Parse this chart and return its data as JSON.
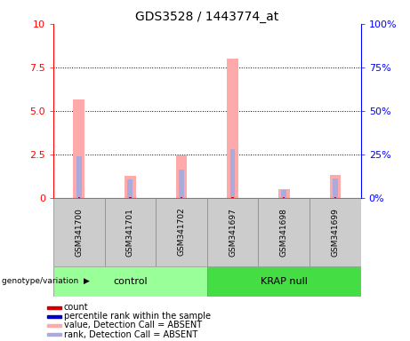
{
  "title": "GDS3528 / 1443774_at",
  "samples": [
    "GSM341700",
    "GSM341701",
    "GSM341702",
    "GSM341697",
    "GSM341698",
    "GSM341699"
  ],
  "control_samples": [
    "GSM341700",
    "GSM341701",
    "GSM341702"
  ],
  "krap_samples": [
    "GSM341697",
    "GSM341698",
    "GSM341699"
  ],
  "pink_bars": [
    5.65,
    1.25,
    2.45,
    8.0,
    0.5,
    1.3
  ],
  "blue_bars": [
    2.4,
    1.05,
    1.6,
    2.8,
    0.42,
    1.1
  ],
  "red_bars": [
    0.05,
    0.05,
    0.05,
    0.05,
    0.05,
    0.05
  ],
  "dark_blue_bars": [
    0.0,
    0.0,
    0.0,
    0.0,
    0.0,
    0.0
  ],
  "ylim_left": [
    0,
    10
  ],
  "ylim_right": [
    0,
    100
  ],
  "yticks_left": [
    0,
    2.5,
    5.0,
    7.5,
    10
  ],
  "yticks_right": [
    0,
    25,
    50,
    75,
    100
  ],
  "pink_color": "#FFAAAA",
  "blue_color": "#AAAADD",
  "red_color": "#CC0000",
  "dark_blue_color": "#0000CC",
  "control_green": "#99FF99",
  "krap_green": "#44DD44",
  "sample_gray": "#CCCCCC",
  "legend_items": [
    {
      "label": "count",
      "color": "#CC0000"
    },
    {
      "label": "percentile rank within the sample",
      "color": "#0000CC"
    },
    {
      "label": "value, Detection Call = ABSENT",
      "color": "#FFAAAA"
    },
    {
      "label": "rank, Detection Call = ABSENT",
      "color": "#AAAADD"
    }
  ]
}
